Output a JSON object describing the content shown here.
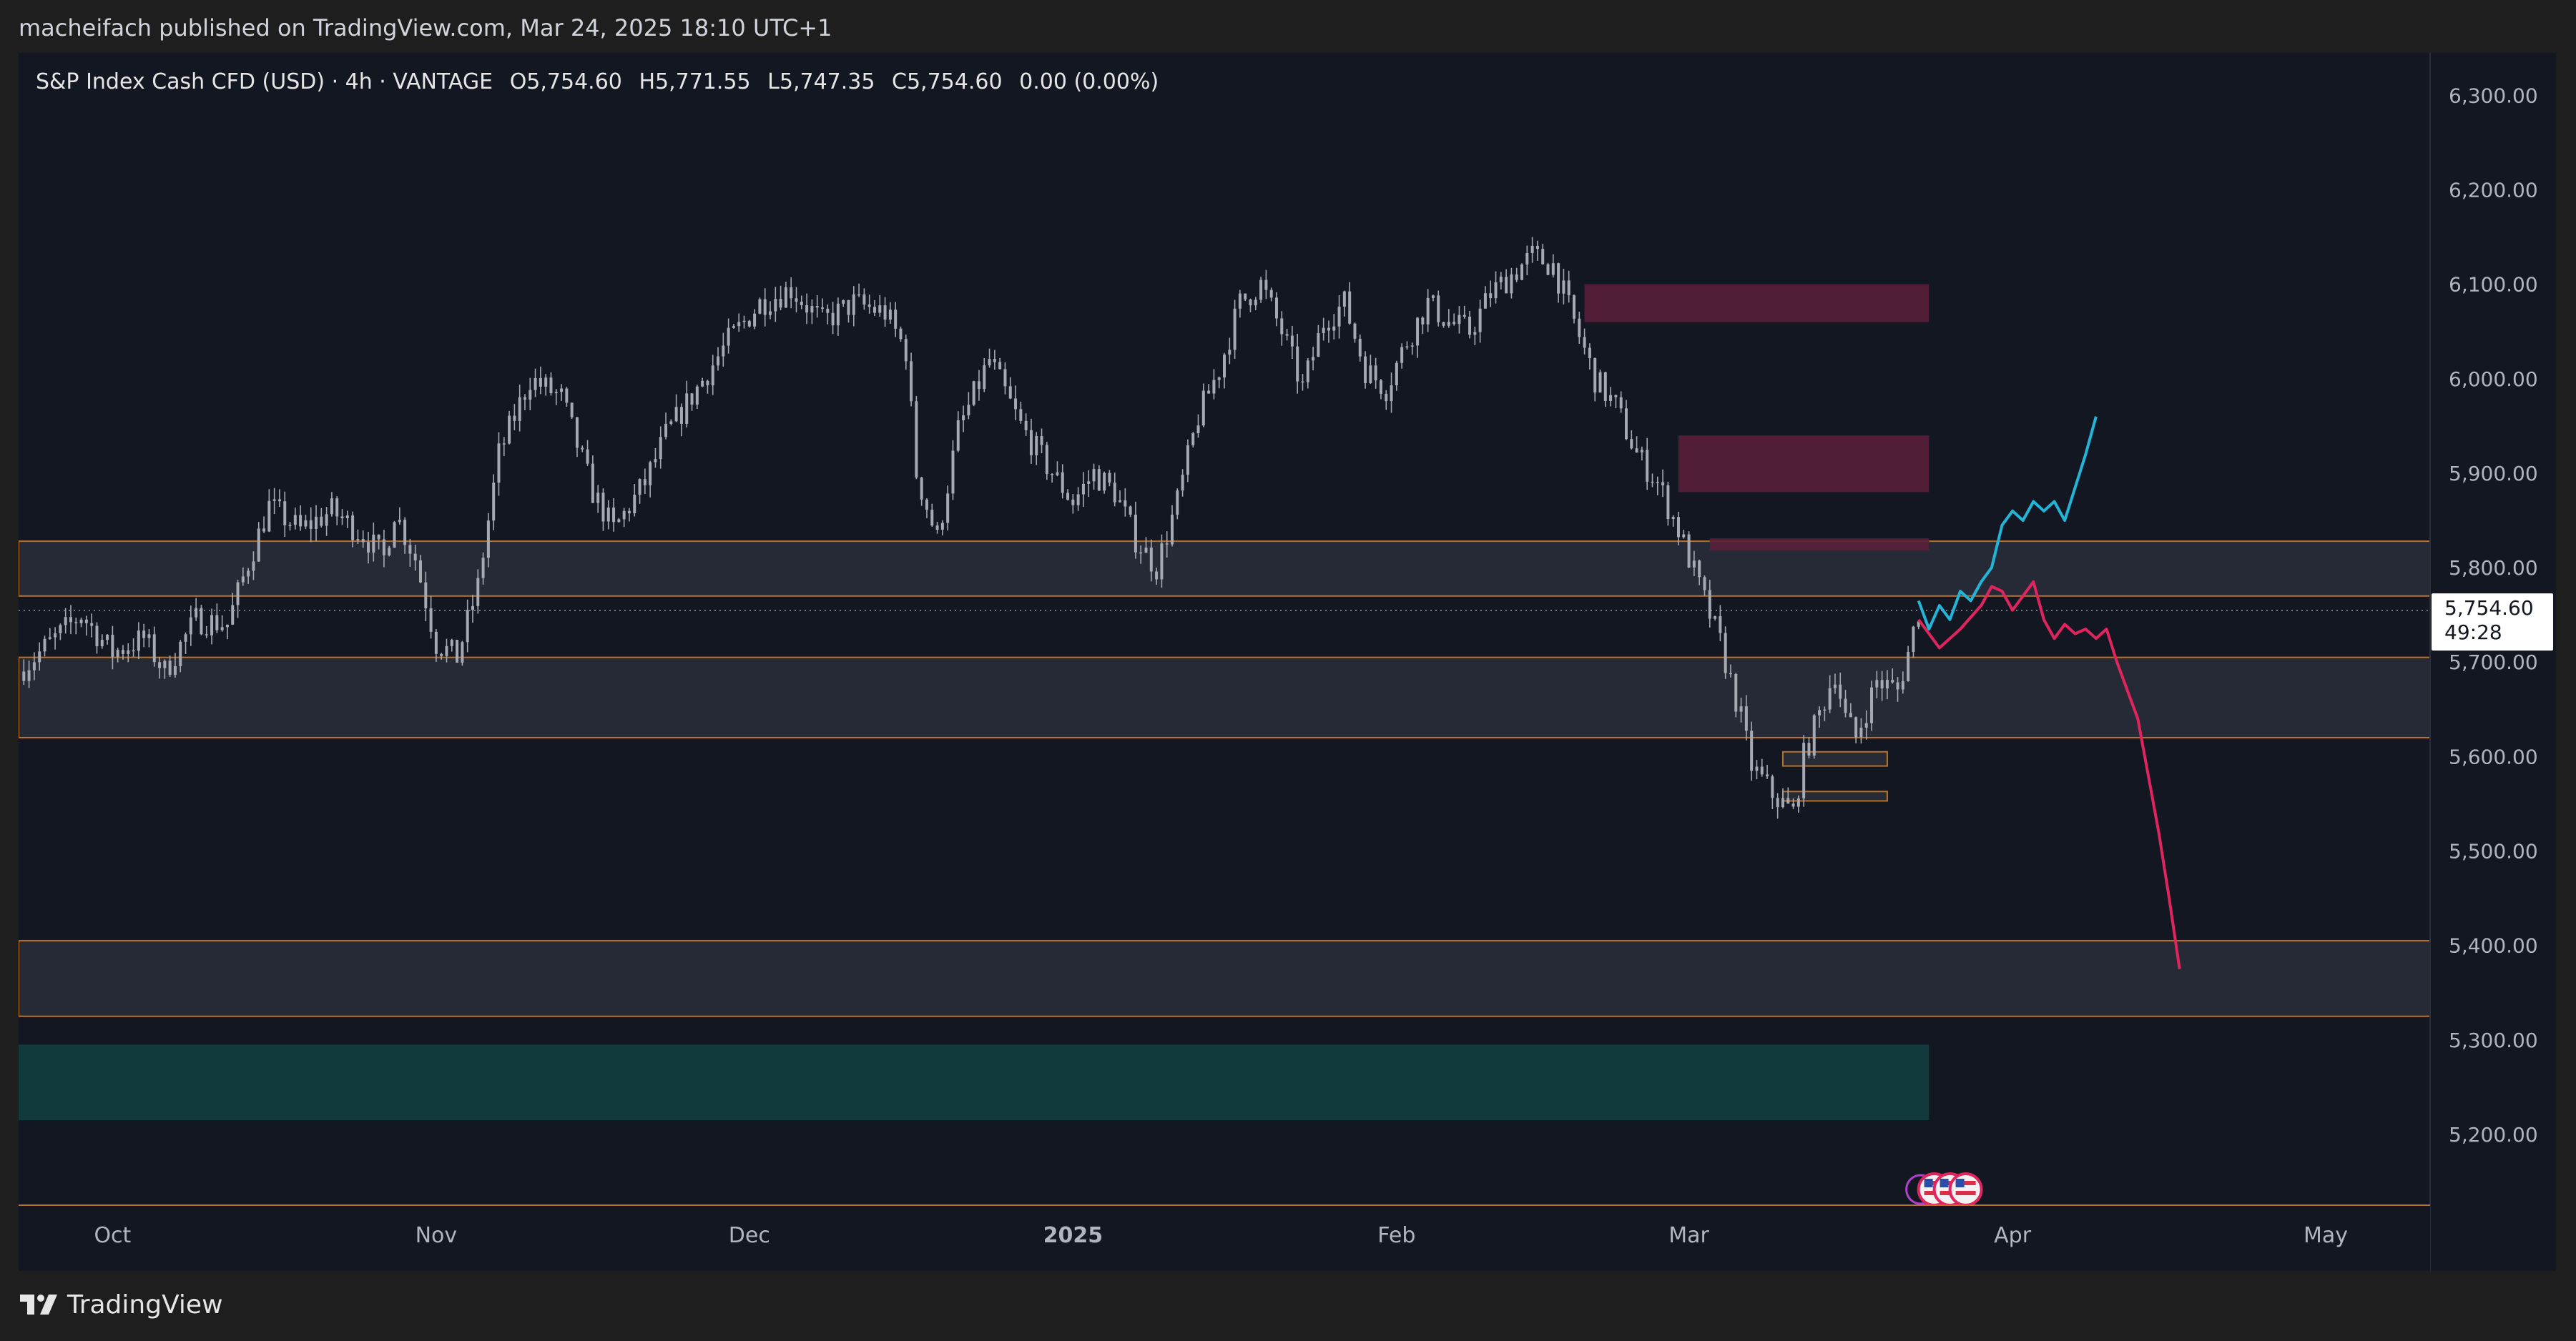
{
  "header": {
    "published": "macheifach published on TradingView.com, Mar 24, 2025 18:10 UTC+1"
  },
  "legend": {
    "symbol": "S&P Index Cash CFD (USD) · 4h · VANTAGE",
    "open": "O5,754.60",
    "high": "H5,771.55",
    "low": "L5,747.35",
    "close": "C5,754.60",
    "change": "0.00 (0.00%)"
  },
  "price_tag": {
    "value": "5,754.60",
    "countdown": "49:28"
  },
  "footer": {
    "brand": "TradingView"
  },
  "colors": {
    "background": "#131722",
    "candles": "#a6a9b2",
    "zone_gray": "#2a2e39",
    "zone_border": "#b8722a",
    "zone_maroon": "#5a1f3a",
    "zone_teal": "#123a3c",
    "projection_up": "#22b5d8",
    "projection_down": "#e0245e"
  },
  "chart_data": {
    "type": "candlestick",
    "timeframe": "4h",
    "y_axis": {
      "ticks": [
        "6,300.00",
        "6,200.00",
        "6,100.00",
        "6,000.00",
        "5,900.00",
        "5,800.00",
        "5,700.00",
        "5,600.00",
        "5,500.00",
        "5,400.00",
        "5,300.00",
        "5,200.00"
      ],
      "tick_values": [
        6300,
        6200,
        6100,
        6000,
        5900,
        5800,
        5700,
        5600,
        5500,
        5400,
        5300,
        5200
      ],
      "range": [
        5125,
        6345
      ]
    },
    "x_axis": {
      "labels": [
        "Oct",
        "Nov",
        "Dec",
        "2025",
        "Feb",
        "Mar",
        "Apr",
        "May"
      ],
      "label_days": [
        0,
        31,
        61,
        92,
        123,
        151,
        182,
        212
      ],
      "range_days": [
        -9,
        222
      ]
    },
    "price_path": [
      [
        -9,
        5690
      ],
      [
        -6,
        5720
      ],
      [
        -3,
        5750
      ],
      [
        0,
        5710
      ],
      [
        3,
        5725
      ],
      [
        5,
        5690
      ],
      [
        8,
        5745
      ],
      [
        11,
        5740
      ],
      [
        13,
        5805
      ],
      [
        15,
        5865
      ],
      [
        18,
        5840
      ],
      [
        21,
        5860
      ],
      [
        24,
        5835
      ],
      [
        26,
        5810
      ],
      [
        27,
        5860
      ],
      [
        29,
        5810
      ],
      [
        31,
        5720
      ],
      [
        33,
        5705
      ],
      [
        35,
        5780
      ],
      [
        37,
        5920
      ],
      [
        40,
        6000
      ],
      [
        43,
        5980
      ],
      [
        46,
        5880
      ],
      [
        48,
        5840
      ],
      [
        51,
        5890
      ],
      [
        53,
        5940
      ],
      [
        56,
        5990
      ],
      [
        59,
        6040
      ],
      [
        62,
        6080
      ],
      [
        65,
        6095
      ],
      [
        68,
        6060
      ],
      [
        71,
        6080
      ],
      [
        74,
        6070
      ],
      [
        76,
        6030
      ],
      [
        77,
        5900
      ],
      [
        79,
        5830
      ],
      [
        81,
        5945
      ],
      [
        84,
        6020
      ],
      [
        87,
        5950
      ],
      [
        90,
        5900
      ],
      [
        92,
        5870
      ],
      [
        94,
        5900
      ],
      [
        96,
        5880
      ],
      [
        98,
        5830
      ],
      [
        100,
        5800
      ],
      [
        102,
        5870
      ],
      [
        104,
        5960
      ],
      [
        106,
        6010
      ],
      [
        108,
        6080
      ],
      [
        110,
        6100
      ],
      [
        112,
        6050
      ],
      [
        114,
        5990
      ],
      [
        116,
        6060
      ],
      [
        118,
        6080
      ],
      [
        120,
        6010
      ],
      [
        122,
        5990
      ],
      [
        124,
        6040
      ],
      [
        126,
        6080
      ],
      [
        128,
        6060
      ],
      [
        130,
        6050
      ],
      [
        132,
        6090
      ],
      [
        134,
        6110
      ],
      [
        136,
        6130
      ],
      [
        138,
        6120
      ],
      [
        140,
        6060
      ],
      [
        142,
        6000
      ],
      [
        144,
        5970
      ],
      [
        146,
        5920
      ],
      [
        148,
        5890
      ],
      [
        150,
        5840
      ],
      [
        152,
        5780
      ],
      [
        154,
        5720
      ],
      [
        156,
        5640
      ],
      [
        157,
        5590
      ],
      [
        159,
        5560
      ],
      [
        161,
        5540
      ],
      [
        162,
        5600
      ],
      [
        163,
        5630
      ],
      [
        164,
        5660
      ],
      [
        165,
        5690
      ],
      [
        166,
        5640
      ],
      [
        167,
        5620
      ],
      [
        169,
        5680
      ],
      [
        171,
        5670
      ],
      [
        172,
        5710
      ],
      [
        173,
        5755
      ]
    ],
    "zones": [
      {
        "kind": "resistance",
        "from_day": -9,
        "to_day": 222,
        "low": 5770,
        "high": 5828
      },
      {
        "kind": "support",
        "from_day": -9,
        "to_day": 222,
        "low": 5620,
        "high": 5705
      },
      {
        "kind": "support",
        "from_day": -9,
        "to_day": 222,
        "low": 5325,
        "high": 5405
      },
      {
        "kind": "demand",
        "from_day": -9,
        "to_day": 174,
        "low": 5215,
        "high": 5295
      },
      {
        "kind": "supply",
        "from_day": 141,
        "to_day": 174,
        "low": 6060,
        "high": 6100
      },
      {
        "kind": "supply",
        "from_day": 150,
        "to_day": 174,
        "low": 5880,
        "high": 5940
      },
      {
        "kind": "supply",
        "from_day": 153,
        "to_day": 174,
        "low": 5818,
        "high": 5831
      },
      {
        "kind": "order_block",
        "from_day": 160,
        "to_day": 170,
        "low": 5590,
        "high": 5605
      },
      {
        "kind": "order_block",
        "from_day": 160,
        "to_day": 170,
        "low": 5553,
        "high": 5563
      }
    ],
    "projections": [
      {
        "kind": "bullish",
        "points": [
          [
            173,
            5765
          ],
          [
            174,
            5735
          ],
          [
            175,
            5760
          ],
          [
            176,
            5745
          ],
          [
            177,
            5775
          ],
          [
            178,
            5765
          ],
          [
            179,
            5785
          ],
          [
            180,
            5800
          ],
          [
            181,
            5845
          ],
          [
            182,
            5860
          ],
          [
            183,
            5850
          ],
          [
            184,
            5870
          ],
          [
            185,
            5860
          ],
          [
            186,
            5870
          ],
          [
            187,
            5850
          ],
          [
            188,
            5885
          ],
          [
            189,
            5920
          ],
          [
            190,
            5960
          ]
        ]
      },
      {
        "kind": "bearish",
        "points": [
          [
            173,
            5745
          ],
          [
            175,
            5715
          ],
          [
            177,
            5735
          ],
          [
            179,
            5760
          ],
          [
            180,
            5780
          ],
          [
            181,
            5775
          ],
          [
            182,
            5755
          ],
          [
            183,
            5770
          ],
          [
            184,
            5785
          ],
          [
            185,
            5745
          ],
          [
            186,
            5725
          ],
          [
            187,
            5740
          ],
          [
            188,
            5730
          ],
          [
            189,
            5735
          ],
          [
            190,
            5725
          ],
          [
            191,
            5735
          ],
          [
            192,
            5700
          ],
          [
            193,
            5670
          ],
          [
            194,
            5640
          ],
          [
            195,
            5580
          ],
          [
            196,
            5520
          ],
          [
            197,
            5450
          ],
          [
            198,
            5375
          ]
        ]
      }
    ],
    "last_price": 5754.6
  }
}
